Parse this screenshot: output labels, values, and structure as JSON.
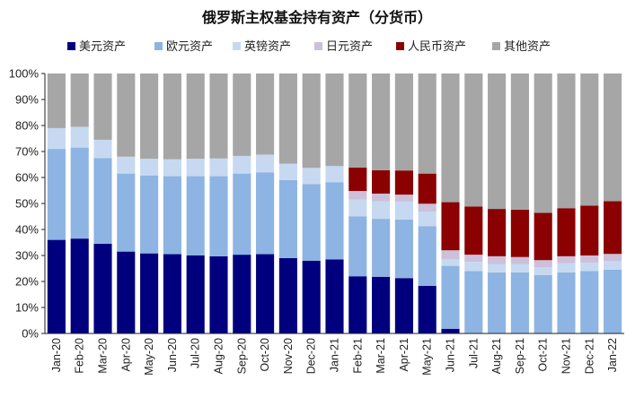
{
  "chart_data": {
    "type": "bar",
    "stacked": true,
    "title": "俄罗斯主权基金持有资产（分货币）",
    "xlabel": "",
    "ylabel": "",
    "ylim": [
      0,
      100
    ],
    "yticks": [
      "0%",
      "10%",
      "20%",
      "30%",
      "40%",
      "50%",
      "60%",
      "70%",
      "80%",
      "90%",
      "100%"
    ],
    "legend_position": "top",
    "grid": false,
    "categories": [
      "Jan-20",
      "Feb-20",
      "Mar-20",
      "Apr-20",
      "May-20",
      "Jun-20",
      "Jul-20",
      "Aug-20",
      "Sep-20",
      "Oct-20",
      "Nov-20",
      "Dec-20",
      "Jan-21",
      "Feb-21",
      "Mar-21",
      "Apr-21",
      "May-21",
      "Jun-21",
      "Jul-21",
      "Aug-21",
      "Sep-21",
      "Oct-21",
      "Nov-21",
      "Dec-21",
      "Jan-22"
    ],
    "series": [
      {
        "name": "美元资产",
        "color": "#00007f",
        "values": [
          36,
          36.5,
          34.5,
          31.5,
          30.8,
          30.5,
          30,
          29.7,
          30.3,
          30.5,
          29,
          28,
          28.5,
          22,
          21.8,
          21.3,
          18.3,
          1.8,
          0,
          0,
          0,
          0,
          0,
          0,
          0
        ]
      },
      {
        "name": "欧元资产",
        "color": "#8db4e2",
        "values": [
          35,
          35,
          33,
          30,
          30,
          30,
          30.5,
          30.8,
          31.2,
          31.5,
          30,
          29.5,
          29.7,
          23,
          22.3,
          22.5,
          23,
          24.2,
          24,
          23.5,
          23.5,
          22.5,
          23.5,
          24,
          24.5
        ]
      },
      {
        "name": "英镑资产",
        "color": "#c6d9f1",
        "values": [
          8,
          8,
          7,
          6.5,
          6.4,
          6.5,
          6.7,
          6.8,
          6.8,
          6.8,
          6.3,
          6.2,
          6.2,
          6.5,
          6.7,
          6.9,
          5.6,
          2.5,
          3.5,
          3.2,
          3.2,
          3,
          3.5,
          3.2,
          3.3
        ]
      },
      {
        "name": "日元资产",
        "color": "#ccc0da",
        "values": [
          0,
          0,
          0,
          0,
          0,
          0,
          0,
          0,
          0,
          0,
          0,
          0,
          0,
          3.3,
          3,
          2.7,
          3,
          3.5,
          2.8,
          3,
          2.7,
          2.7,
          2.7,
          2.8,
          2.8
        ]
      },
      {
        "name": "人民币资产",
        "color": "#8b0000",
        "values": [
          0,
          0,
          0,
          0,
          0,
          0,
          0,
          0,
          0,
          0,
          0,
          0,
          0,
          9,
          9,
          9.3,
          11.6,
          18.5,
          18.5,
          18.2,
          18.2,
          18.2,
          18.5,
          19.2,
          20.3
        ]
      },
      {
        "name": "其他资产",
        "color": "#a6a6a6",
        "values": [
          21,
          20.5,
          25.5,
          32,
          32.8,
          33,
          32.8,
          32.7,
          31.7,
          31.2,
          34.7,
          36.3,
          35.6,
          36.2,
          37.2,
          37.3,
          38.5,
          49.5,
          51.2,
          52.1,
          52.4,
          53.6,
          51.8,
          50.8,
          49.1
        ]
      }
    ]
  }
}
